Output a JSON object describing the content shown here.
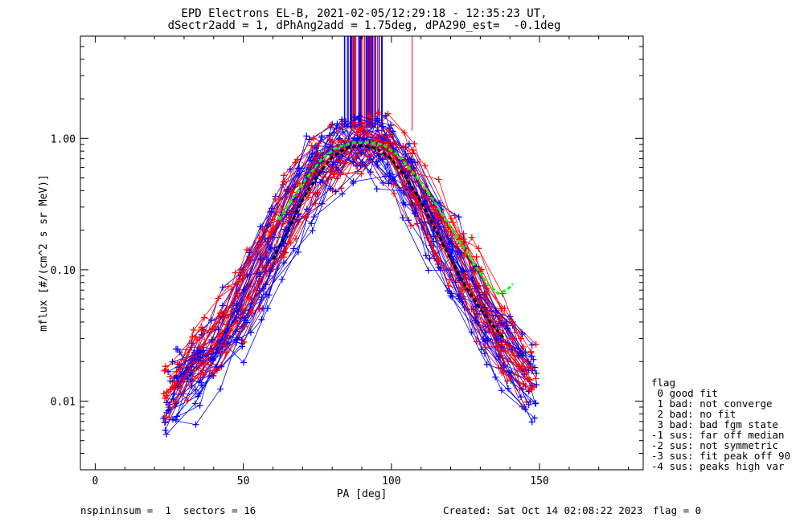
{
  "title_line1": "EPD Electrons EL-B, 2021-02-05/12:29:18 - 12:35:23 UT,",
  "title_line2": "dSectr2add = 1, dPhAng2add = 1.75deg, dPA290_est=  -0.1deg",
  "footer_left": "nspininsum =  1  sectors = 16",
  "footer_created": "Created: Sat Oct 14 02:08:22 2023",
  "footer_flag": "flag = 0",
  "legend": {
    "title": "flag",
    "items": [
      " 0 good fit",
      " 1 bad: not converge",
      " 2 bad: no fit",
      " 3 bad: bad fgm state",
      "-1 sus: far off median",
      "-2 sus: not symmetric",
      "-3 sus: fit peak off 90",
      "-4 sus: peaks high var"
    ]
  },
  "chart_data": {
    "type": "line",
    "title": "EPD Electrons EL-B, 2021-02-05/12:29:18 - 12:35:23 UT, dSectr2add = 1, dPhAng2add = 1.75deg, dPA290_est=  -0.1deg",
    "xlabel": "PA [deg]",
    "ylabel": "mflux [#/(cm^2 s sr MeV)]",
    "xlim": [
      -5,
      185
    ],
    "ylim": [
      0.003,
      6.0
    ],
    "yscale": "log",
    "xticks": [
      0,
      50,
      100,
      150
    ],
    "xtick_labels": [
      "0",
      "50",
      "100",
      "150"
    ],
    "yticks": [
      0.01,
      0.1,
      1.0
    ],
    "ytick_labels": [
      "0.01",
      "0.10",
      "1.00"
    ],
    "colors": {
      "red": "#ff0000",
      "blue": "#0000ff",
      "green": "#00ff00",
      "black": "#000000"
    },
    "series": [
      {
        "color": "red",
        "marker": "plus",
        "profile": [
          [
            30,
            0.02
          ],
          [
            45,
            0.035
          ],
          [
            60,
            0.2
          ],
          [
            75,
            0.65
          ],
          [
            85,
            0.92
          ],
          [
            95,
            0.92
          ],
          [
            105,
            0.6
          ],
          [
            120,
            0.15
          ],
          [
            135,
            0.035
          ],
          [
            150,
            0.012
          ]
        ]
      },
      {
        "color": "blue",
        "marker": "plus",
        "profile": [
          [
            28,
            0.012
          ],
          [
            45,
            0.03
          ],
          [
            60,
            0.15
          ],
          [
            75,
            0.6
          ],
          [
            85,
            0.85
          ],
          [
            95,
            0.85
          ],
          [
            105,
            0.55
          ],
          [
            120,
            0.12
          ],
          [
            135,
            0.03
          ],
          [
            152,
            0.01
          ]
        ]
      },
      {
        "color": "green",
        "marker": "dash",
        "points": [
          [
            62,
            0.24
          ],
          [
            67,
            0.36
          ],
          [
            72,
            0.52
          ],
          [
            77,
            0.72
          ],
          [
            82,
            0.86
          ],
          [
            87,
            0.93
          ],
          [
            92,
            0.93
          ],
          [
            97,
            0.9
          ],
          [
            102,
            0.75
          ],
          [
            107,
            0.56
          ],
          [
            112,
            0.4
          ],
          [
            117,
            0.27
          ],
          [
            122,
            0.18
          ],
          [
            127,
            0.12
          ],
          [
            132,
            0.08
          ],
          [
            136,
            0.066
          ],
          [
            139,
            0.07
          ],
          [
            141,
            0.078
          ]
        ]
      },
      {
        "color": "black",
        "marker": "dash",
        "points": [
          [
            60,
            0.12
          ],
          [
            65,
            0.2
          ],
          [
            70,
            0.34
          ],
          [
            75,
            0.52
          ],
          [
            80,
            0.72
          ],
          [
            85,
            0.85
          ],
          [
            90,
            0.88
          ],
          [
            95,
            0.84
          ],
          [
            100,
            0.7
          ],
          [
            105,
            0.5
          ],
          [
            110,
            0.33
          ],
          [
            115,
            0.2
          ],
          [
            120,
            0.12
          ],
          [
            125,
            0.075
          ],
          [
            130,
            0.05
          ],
          [
            135,
            0.036
          ],
          [
            138,
            0.03
          ]
        ]
      }
    ],
    "spike_range_x": [
      84,
      97
    ],
    "spike_ylim_bottom": 1.2
  }
}
